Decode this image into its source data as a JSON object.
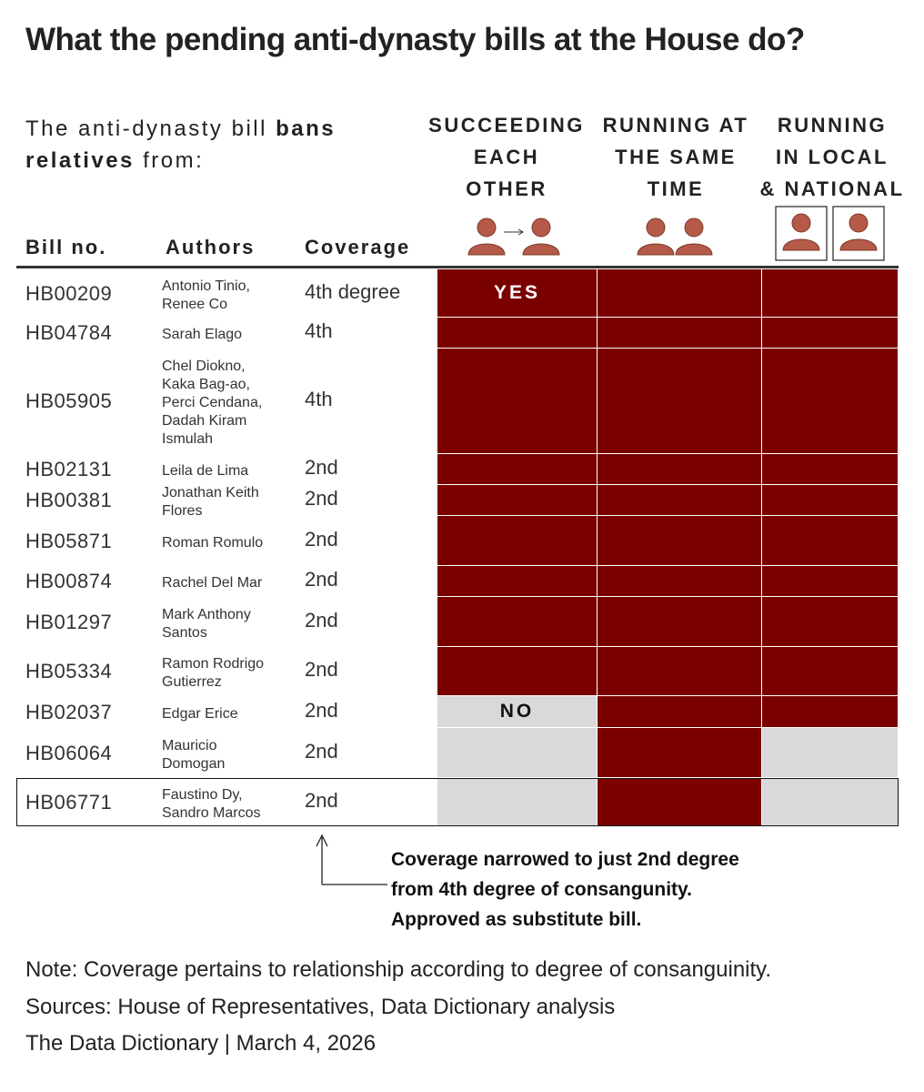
{
  "title": "What the pending anti-dynasty bills at the House do?",
  "intro": {
    "part1": "The anti-dynasty bill ",
    "bold1": "bans",
    "bold2": "relatives",
    "part2": " from:"
  },
  "column_headers": {
    "bill": "Bill no.",
    "authors": "Authors",
    "coverage": "Coverage"
  },
  "colors": {
    "yes": "#7a0000",
    "no": "#d9d9d9",
    "icon": "#b55a48"
  },
  "chart_data": {
    "type": "table",
    "categories": [
      {
        "label": "SUCCEEDING\nEACH\nOTHER",
        "icon": "person-succession-icon"
      },
      {
        "label": "RUNNING AT\nTHE SAME\nTIME",
        "icon": "two-persons-icon"
      },
      {
        "label": "RUNNING\nIN LOCAL\n& NATIONAL",
        "icon": "two-framed-persons-icon"
      }
    ],
    "value_labels": {
      "yes": "YES",
      "no": "NO"
    },
    "rows": [
      {
        "bill": "HB00209",
        "authors": "Antonio Tinio,\nRenee Co",
        "coverage": "4th degree",
        "bans": [
          true,
          true,
          true
        ]
      },
      {
        "bill": "HB04784",
        "authors": "Sarah Elago",
        "coverage": "4th",
        "bans": [
          true,
          true,
          true
        ]
      },
      {
        "bill": "HB05905",
        "authors": "Chel Diokno,\nKaka Bag-ao,\nPerci Cendana,\nDadah Kiram\nIsmulah",
        "coverage": "4th",
        "bans": [
          true,
          true,
          true
        ]
      },
      {
        "bill": "HB02131",
        "authors": "Leila de Lima",
        "coverage": "2nd",
        "bans": [
          true,
          true,
          true
        ]
      },
      {
        "bill": "HB00381",
        "authors": "Jonathan Keith\nFlores",
        "coverage": "2nd",
        "bans": [
          true,
          true,
          true
        ]
      },
      {
        "bill": "HB05871",
        "authors": "Roman Romulo",
        "coverage": "2nd",
        "bans": [
          true,
          true,
          true
        ]
      },
      {
        "bill": "HB00874",
        "authors": "Rachel Del Mar",
        "coverage": "2nd",
        "bans": [
          true,
          true,
          true
        ]
      },
      {
        "bill": "HB01297",
        "authors": "Mark Anthony\nSantos",
        "coverage": "2nd",
        "bans": [
          true,
          true,
          true
        ]
      },
      {
        "bill": "HB05334",
        "authors": "Ramon Rodrigo\nGutierrez",
        "coverage": "2nd",
        "bans": [
          true,
          true,
          true
        ]
      },
      {
        "bill": "HB02037",
        "authors": "Edgar Erice",
        "coverage": "2nd",
        "bans": [
          false,
          true,
          true
        ]
      },
      {
        "bill": "HB06064",
        "authors": "Mauricio\nDomogan",
        "coverage": "2nd",
        "bans": [
          false,
          true,
          false
        ]
      },
      {
        "bill": "HB06771",
        "authors": "Faustino Dy,\nSandro Marcos",
        "coverage": "2nd",
        "bans": [
          false,
          true,
          false
        ],
        "highlighted": true
      }
    ]
  },
  "annotation": "Coverage narrowed to just 2nd degree\nfrom 4th degree of consangunity.\nApproved as substitute bill.",
  "footer": {
    "note": "Note: Coverage pertains to relationship according to degree of consanguinity.",
    "sources": "Sources: House of Representatives, Data Dictionary analysis",
    "credit": "The Data Dictionary | March 4, 2026"
  }
}
